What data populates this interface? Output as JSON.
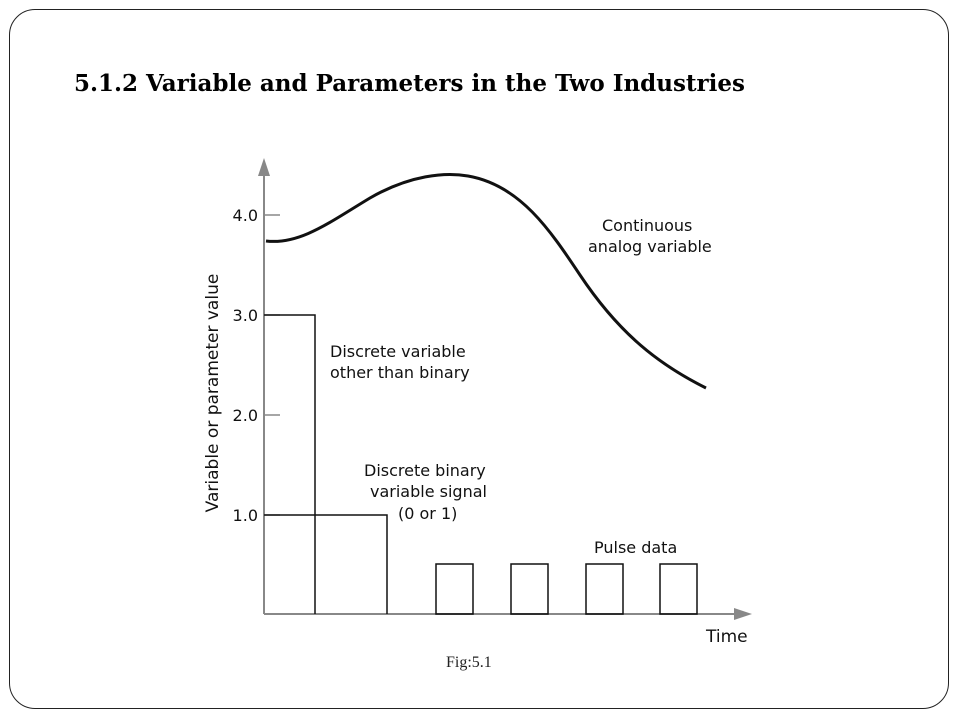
{
  "slide": {
    "title": "5.1.2 Variable and Parameters in the Two Industries",
    "caption": "Fig:5.1"
  },
  "diagram": {
    "y_axis_label": "Variable or parameter value",
    "x_axis_label": "Time",
    "y_ticks": [
      "4.0",
      "3.0",
      "2.0",
      "1.0"
    ],
    "labels": {
      "continuous": [
        "Continuous",
        "analog variable"
      ],
      "discrete": [
        "Discrete variable",
        "other than binary"
      ],
      "binary": [
        "Discrete binary",
        "variable signal",
        "(0 or 1)"
      ],
      "pulse": "Pulse data"
    },
    "colors": {
      "line": "#111111",
      "axis": "#888888"
    }
  }
}
